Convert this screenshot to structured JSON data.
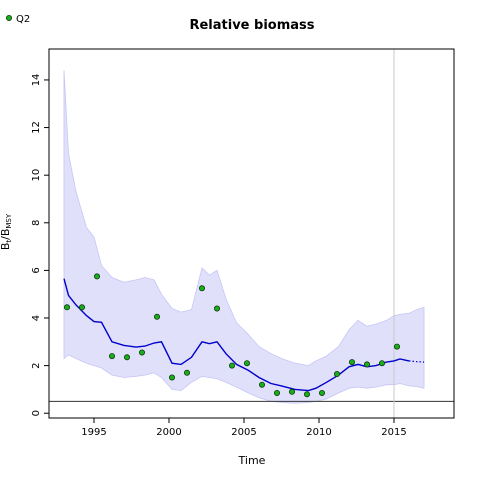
{
  "chart_data": {
    "type": "line",
    "title": "Relative biomass",
    "xlabel": "Time",
    "ylabel": "B_t/B_MSY",
    "xlim": [
      1992,
      2019
    ],
    "ylim": [
      -0.2,
      15.3
    ],
    "x_ticks": [
      1995,
      2000,
      2005,
      2010,
      2015
    ],
    "y_ticks": [
      0,
      2,
      4,
      6,
      8,
      10,
      12,
      14
    ],
    "grid": false,
    "legend": {
      "position": "top-left",
      "entries": [
        "Q2"
      ]
    },
    "reference_hline_y": 0.5,
    "reference_vline_x": 2015,
    "colors": {
      "line": "#0000cc",
      "band": "#e0e0fb",
      "band_edge": "#c6c6f5",
      "points_fill": "#1aae1a",
      "points_edge": "#0a3a0a",
      "hline": "#333333",
      "vline": "#c8c8c8"
    },
    "estimate": {
      "x": [
        1993,
        1993.3,
        1993.8,
        1994.5,
        1995.0,
        1995.5,
        1996.2,
        1997.0,
        1997.8,
        1998.4,
        1999.0,
        1999.5,
        2000.2,
        2000.8,
        2001.5,
        2002.2,
        2002.7,
        2003.2,
        2003.8,
        2004.5,
        2005.3,
        2006.0,
        2006.8,
        2007.5,
        2008.4,
        2009.3,
        2009.8,
        2010.5,
        2011.3,
        2012.0,
        2012.6,
        2013.2,
        2013.8,
        2014.5,
        2015.0,
        2015.4,
        2016.0
      ],
      "y": [
        5.65,
        4.95,
        4.55,
        4.1,
        3.85,
        3.82,
        3.0,
        2.85,
        2.78,
        2.82,
        2.95,
        3.0,
        2.1,
        2.05,
        2.35,
        3.0,
        2.92,
        3.0,
        2.5,
        2.05,
        1.8,
        1.5,
        1.25,
        1.15,
        1.0,
        0.95,
        1.05,
        1.3,
        1.6,
        1.95,
        2.05,
        1.95,
        2.0,
        2.15,
        2.2,
        2.28,
        2.2
      ]
    },
    "forecast": {
      "x": [
        2016,
        2016.5,
        2017
      ],
      "y": [
        2.2,
        2.17,
        2.15
      ]
    },
    "band_upper": {
      "x": [
        1993,
        1993.3,
        1993.8,
        1994.5,
        1995.0,
        1995.5,
        1996.2,
        1997.0,
        1997.8,
        1998.4,
        1999.0,
        1999.5,
        2000.2,
        2000.8,
        2001.5,
        2002.2,
        2002.7,
        2003.2,
        2003.8,
        2004.5,
        2005.3,
        2006.0,
        2006.8,
        2007.5,
        2008.4,
        2009.3,
        2009.8,
        2010.5,
        2011.3,
        2012.0,
        2012.6,
        2013.2,
        2013.8,
        2014.5,
        2015.0,
        2015.4,
        2016.0,
        2016.5,
        2017.0
      ],
      "y": [
        14.4,
        10.9,
        9.3,
        7.8,
        7.4,
        6.2,
        5.7,
        5.5,
        5.6,
        5.7,
        5.6,
        5.0,
        4.4,
        4.25,
        4.35,
        6.1,
        5.8,
        6.0,
        4.8,
        3.8,
        3.3,
        2.8,
        2.5,
        2.3,
        2.1,
        2.0,
        2.2,
        2.4,
        2.8,
        3.5,
        3.9,
        3.65,
        3.75,
        3.9,
        4.1,
        4.15,
        4.2,
        4.35,
        4.45
      ]
    },
    "band_lower": {
      "x": [
        1993,
        1993.3,
        1993.8,
        1994.5,
        1995.0,
        1995.5,
        1996.2,
        1997.0,
        1997.8,
        1998.4,
        1999.0,
        1999.5,
        2000.2,
        2000.8,
        2001.5,
        2002.2,
        2002.7,
        2003.2,
        2003.8,
        2004.5,
        2005.3,
        2006.0,
        2006.8,
        2007.5,
        2008.4,
        2009.3,
        2009.8,
        2010.5,
        2011.3,
        2012.0,
        2012.6,
        2013.2,
        2013.8,
        2014.5,
        2015.0,
        2015.4,
        2016.0,
        2016.5,
        2017.0
      ],
      "y": [
        2.3,
        2.45,
        2.3,
        2.1,
        2.0,
        1.9,
        1.6,
        1.5,
        1.55,
        1.6,
        1.7,
        1.5,
        1.0,
        0.95,
        1.3,
        1.55,
        1.5,
        1.45,
        1.3,
        1.1,
        0.85,
        0.65,
        0.5,
        0.45,
        0.42,
        0.45,
        0.5,
        0.6,
        0.85,
        1.05,
        1.1,
        1.05,
        1.1,
        1.2,
        1.2,
        1.25,
        1.15,
        1.12,
        1.05
      ]
    },
    "observations_Q2": {
      "x": [
        1993.2,
        1994.2,
        1995.2,
        1996.2,
        1997.2,
        1998.2,
        1999.2,
        2000.2,
        2001.2,
        2002.2,
        2003.2,
        2004.2,
        2005.2,
        2006.2,
        2007.2,
        2008.2,
        2009.2,
        2010.2,
        2011.2,
        2012.2,
        2013.2,
        2014.2,
        2015.2
      ],
      "y": [
        4.45,
        4.45,
        5.75,
        2.4,
        2.35,
        2.55,
        4.05,
        1.5,
        1.7,
        5.25,
        4.4,
        2.0,
        2.1,
        1.2,
        0.85,
        0.9,
        0.8,
        0.85,
        1.65,
        2.15,
        2.05,
        2.1,
        2.8
      ]
    }
  }
}
